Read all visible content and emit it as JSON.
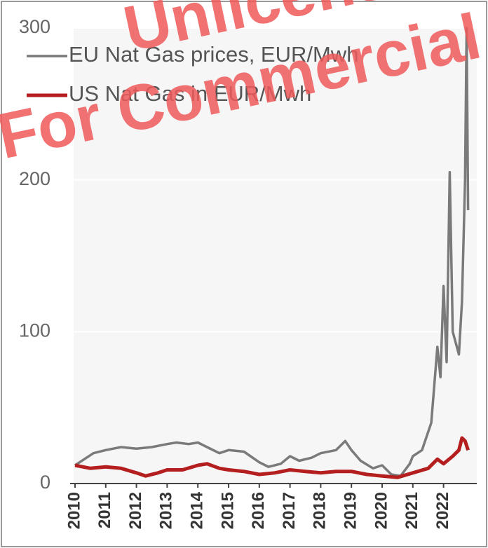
{
  "chart_data": {
    "type": "line",
    "watermark": [
      "Unlicensed",
      "Not For Commercial Use"
    ],
    "xlim": [
      2010,
      2023.1
    ],
    "xticks": [
      2010,
      2011,
      2012,
      2013,
      2014,
      2015,
      2016,
      2017,
      2018,
      2019,
      2020,
      2021,
      2022
    ],
    "ylim": [
      0,
      300
    ],
    "yticks": [
      0,
      100,
      200,
      300
    ],
    "grid": true,
    "legend": "upper left",
    "series": [
      {
        "name": "EU Nat Gas prices, EUR/Mwh",
        "color": "#7a7a7a",
        "x": [
          2010.0,
          2010.3,
          2010.6,
          2011.0,
          2011.5,
          2012.0,
          2012.5,
          2013.0,
          2013.3,
          2013.7,
          2014.0,
          2014.3,
          2014.7,
          2015.0,
          2015.5,
          2016.0,
          2016.3,
          2016.7,
          2017.0,
          2017.3,
          2017.7,
          2018.0,
          2018.5,
          2018.8,
          2019.0,
          2019.3,
          2019.7,
          2020.0,
          2020.3,
          2020.6,
          2020.9,
          2021.0,
          2021.3,
          2021.6,
          2021.8,
          2021.9,
          2022.0,
          2022.1,
          2022.2,
          2022.3,
          2022.5,
          2022.6,
          2022.7,
          2022.75,
          2022.8
        ],
        "values": [
          12,
          16,
          20,
          22,
          24,
          23,
          24,
          26,
          27,
          26,
          27,
          24,
          20,
          22,
          21,
          14,
          11,
          13,
          18,
          15,
          17,
          20,
          22,
          28,
          22,
          15,
          10,
          12,
          6,
          5,
          13,
          18,
          22,
          40,
          90,
          70,
          130,
          80,
          205,
          100,
          85,
          120,
          200,
          300,
          180
        ]
      },
      {
        "name": "US Nat Gas in EUR/Mwh",
        "color": "#b41e1e",
        "x": [
          2010.0,
          2010.5,
          2011.0,
          2011.5,
          2012.0,
          2012.3,
          2012.7,
          2013.0,
          2013.5,
          2014.0,
          2014.3,
          2014.7,
          2015.0,
          2015.5,
          2016.0,
          2016.5,
          2017.0,
          2017.5,
          2018.0,
          2018.5,
          2019.0,
          2019.5,
          2020.0,
          2020.5,
          2021.0,
          2021.5,
          2021.8,
          2022.0,
          2022.3,
          2022.5,
          2022.6,
          2022.7,
          2022.8
        ],
        "values": [
          12,
          10,
          11,
          10,
          7,
          5,
          7,
          9,
          9,
          12,
          13,
          10,
          9,
          8,
          6,
          7,
          9,
          8,
          7,
          8,
          8,
          6,
          5,
          4,
          7,
          10,
          16,
          13,
          18,
          22,
          30,
          28,
          22
        ]
      }
    ]
  }
}
